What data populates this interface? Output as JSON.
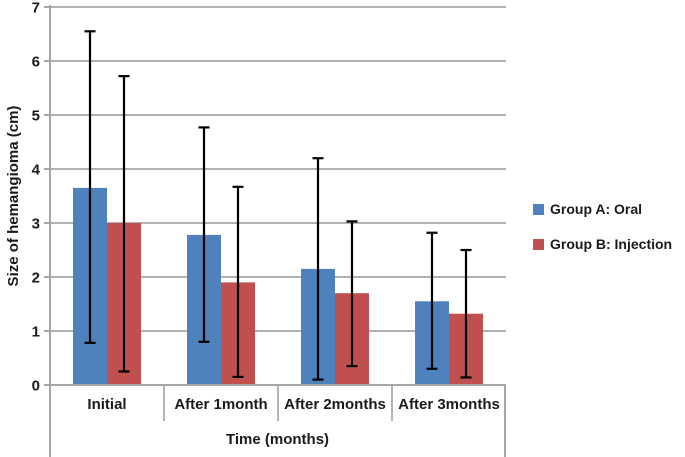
{
  "figure": {
    "background": "#ffffff"
  },
  "chart_data": {
    "type": "bar",
    "title": "",
    "xlabel": "Time (months)",
    "ylabel": "Size of hemangioma (cm)",
    "ylim": [
      0,
      7
    ],
    "yticks": [
      "0",
      "1",
      "2",
      "3",
      "4",
      "5",
      "6",
      "7"
    ],
    "grid": true,
    "legend_position": "right",
    "categories": [
      "Initial",
      "After 1month",
      "After 2months",
      "After 3months"
    ],
    "series": [
      {
        "name": "Group A: Oral",
        "color": "#4F81BD",
        "values": [
          3.65,
          2.78,
          2.15,
          1.55
        ],
        "error_low": [
          0.78,
          0.8,
          0.1,
          0.3
        ],
        "error_high": [
          6.55,
          4.77,
          4.2,
          2.82
        ]
      },
      {
        "name": "Group B: Injection",
        "color": "#C0504D",
        "values": [
          3.0,
          1.9,
          1.7,
          1.32
        ],
        "error_low": [
          0.25,
          0.15,
          0.35,
          0.14
        ],
        "error_high": [
          5.72,
          3.67,
          3.03,
          2.5
        ]
      }
    ],
    "error_bar_color": "#000000",
    "axis_color": "#a6a6a6",
    "text_color": "#1a1a1a"
  }
}
